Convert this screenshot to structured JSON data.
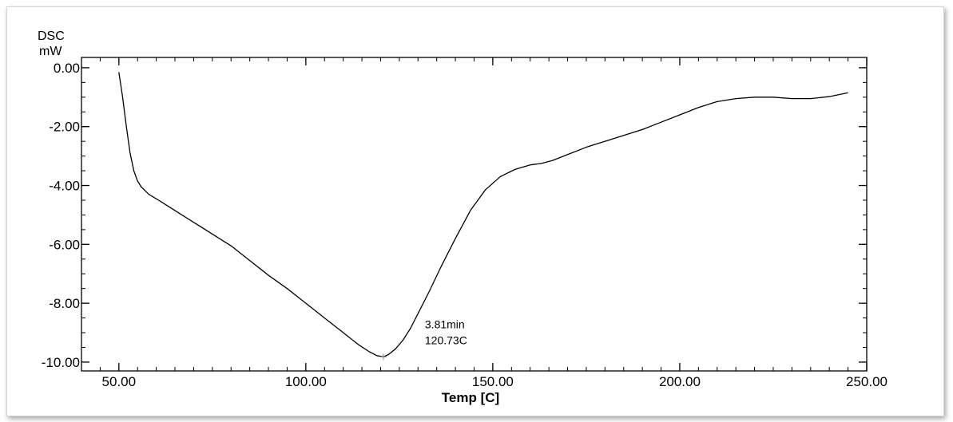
{
  "chart_data": {
    "type": "line",
    "ylabel_top": "DSC",
    "ylabel_unit": "mW",
    "xlabel": "Temp  [C]",
    "xlim": [
      40,
      250
    ],
    "ylim": [
      -10.3,
      0.35
    ],
    "xticks": [
      50,
      100,
      150,
      200,
      250
    ],
    "xtick_labels": [
      "50.00",
      "100.00",
      "150.00",
      "200.00",
      "250.00"
    ],
    "yticks": [
      0,
      -2,
      -4,
      -6,
      -8,
      -10
    ],
    "ytick_labels": [
      "0.00",
      "-2.00",
      "-4.00",
      "-6.00",
      "-8.00",
      "-10.00"
    ],
    "grid": false,
    "series": [
      {
        "color": "#000000",
        "x": [
          50,
          51,
          52,
          53,
          54,
          55,
          56,
          58,
          60,
          65,
          70,
          75,
          80,
          85,
          90,
          95,
          100,
          105,
          110,
          114,
          117,
          119,
          120.73,
          122,
          124,
          126,
          128,
          130,
          133,
          136,
          140,
          144,
          148,
          152,
          156,
          160,
          163,
          166,
          170,
          175,
          180,
          185,
          190,
          195,
          200,
          205,
          210,
          215,
          220,
          225,
          230,
          235,
          240,
          245
        ],
        "y": [
          -0.15,
          -1.0,
          -2.0,
          -2.9,
          -3.5,
          -3.85,
          -4.05,
          -4.3,
          -4.45,
          -4.85,
          -5.25,
          -5.65,
          -6.05,
          -6.55,
          -7.05,
          -7.5,
          -8.0,
          -8.5,
          -9.0,
          -9.4,
          -9.65,
          -9.78,
          -9.82,
          -9.75,
          -9.55,
          -9.25,
          -8.85,
          -8.35,
          -7.6,
          -6.8,
          -5.8,
          -4.85,
          -4.15,
          -3.7,
          -3.45,
          -3.3,
          -3.25,
          -3.15,
          -2.95,
          -2.7,
          -2.5,
          -2.3,
          -2.1,
          -1.85,
          -1.6,
          -1.35,
          -1.15,
          -1.05,
          -1.0,
          -1.0,
          -1.05,
          -1.05,
          -0.98,
          -0.85
        ]
      }
    ],
    "annotation": {
      "line1": "3.81min",
      "line2": "120.73C",
      "x": 120.73,
      "y": -9.82
    }
  }
}
